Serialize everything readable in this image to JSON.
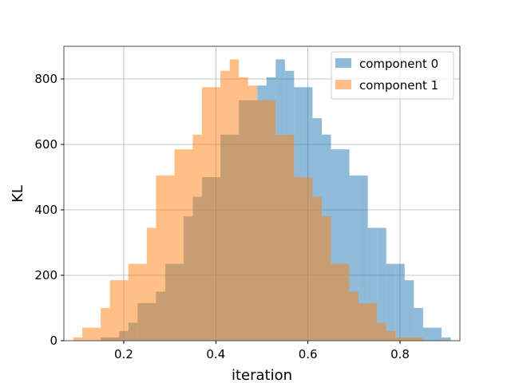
{
  "chart_data": {
    "type": "bar",
    "subtype": "overlaid-histogram",
    "xlabel": "iteration",
    "ylabel": "KL",
    "xlim": [
      0.07,
      0.93
    ],
    "ylim": [
      0,
      900
    ],
    "grid": true,
    "legend_position": "top-right",
    "xticks": [
      0.2,
      0.4,
      0.6,
      0.8
    ],
    "xtick_labels": [
      "0.2",
      "0.4",
      "0.6",
      "0.8"
    ],
    "yticks": [
      0,
      200,
      400,
      600,
      800
    ],
    "ytick_labels": [
      "0",
      "200",
      "400",
      "600",
      "800"
    ],
    "series": [
      {
        "name": "component 0",
        "color": "#1f77b4",
        "opacity": 0.5,
        "bin_edges": [
          0.15,
          0.17,
          0.19,
          0.21,
          0.23,
          0.25,
          0.27,
          0.29,
          0.31,
          0.33,
          0.35,
          0.37,
          0.39,
          0.41,
          0.43,
          0.45,
          0.47,
          0.49,
          0.51,
          0.53,
          0.55,
          0.57,
          0.59,
          0.61,
          0.63,
          0.65,
          0.67,
          0.69,
          0.71,
          0.73,
          0.75,
          0.77,
          0.79,
          0.81,
          0.83,
          0.85,
          0.87,
          0.89,
          0.91
        ],
        "values": [
          10,
          10,
          30,
          55,
          115,
          115,
          150,
          235,
          235,
          380,
          440,
          500,
          500,
          630,
          630,
          735,
          735,
          780,
          805,
          860,
          825,
          775,
          775,
          680,
          630,
          585,
          585,
          505,
          505,
          345,
          345,
          235,
          235,
          185,
          100,
          40,
          40,
          10
        ]
      },
      {
        "name": "component 1",
        "color": "#ff7f0e",
        "opacity": 0.5,
        "bin_edges": [
          0.09,
          0.11,
          0.13,
          0.15,
          0.17,
          0.19,
          0.21,
          0.23,
          0.25,
          0.27,
          0.29,
          0.31,
          0.33,
          0.35,
          0.37,
          0.39,
          0.41,
          0.43,
          0.45,
          0.47,
          0.49,
          0.51,
          0.53,
          0.55,
          0.57,
          0.59,
          0.61,
          0.63,
          0.65,
          0.67,
          0.69,
          0.71,
          0.73,
          0.75,
          0.77,
          0.79,
          0.81,
          0.83,
          0.85
        ],
        "values": [
          10,
          40,
          40,
          100,
          185,
          185,
          235,
          235,
          345,
          505,
          505,
          585,
          585,
          630,
          775,
          775,
          825,
          860,
          805,
          780,
          735,
          735,
          630,
          630,
          500,
          500,
          440,
          380,
          235,
          235,
          150,
          115,
          115,
          55,
          30,
          10,
          10,
          10
        ]
      }
    ]
  }
}
